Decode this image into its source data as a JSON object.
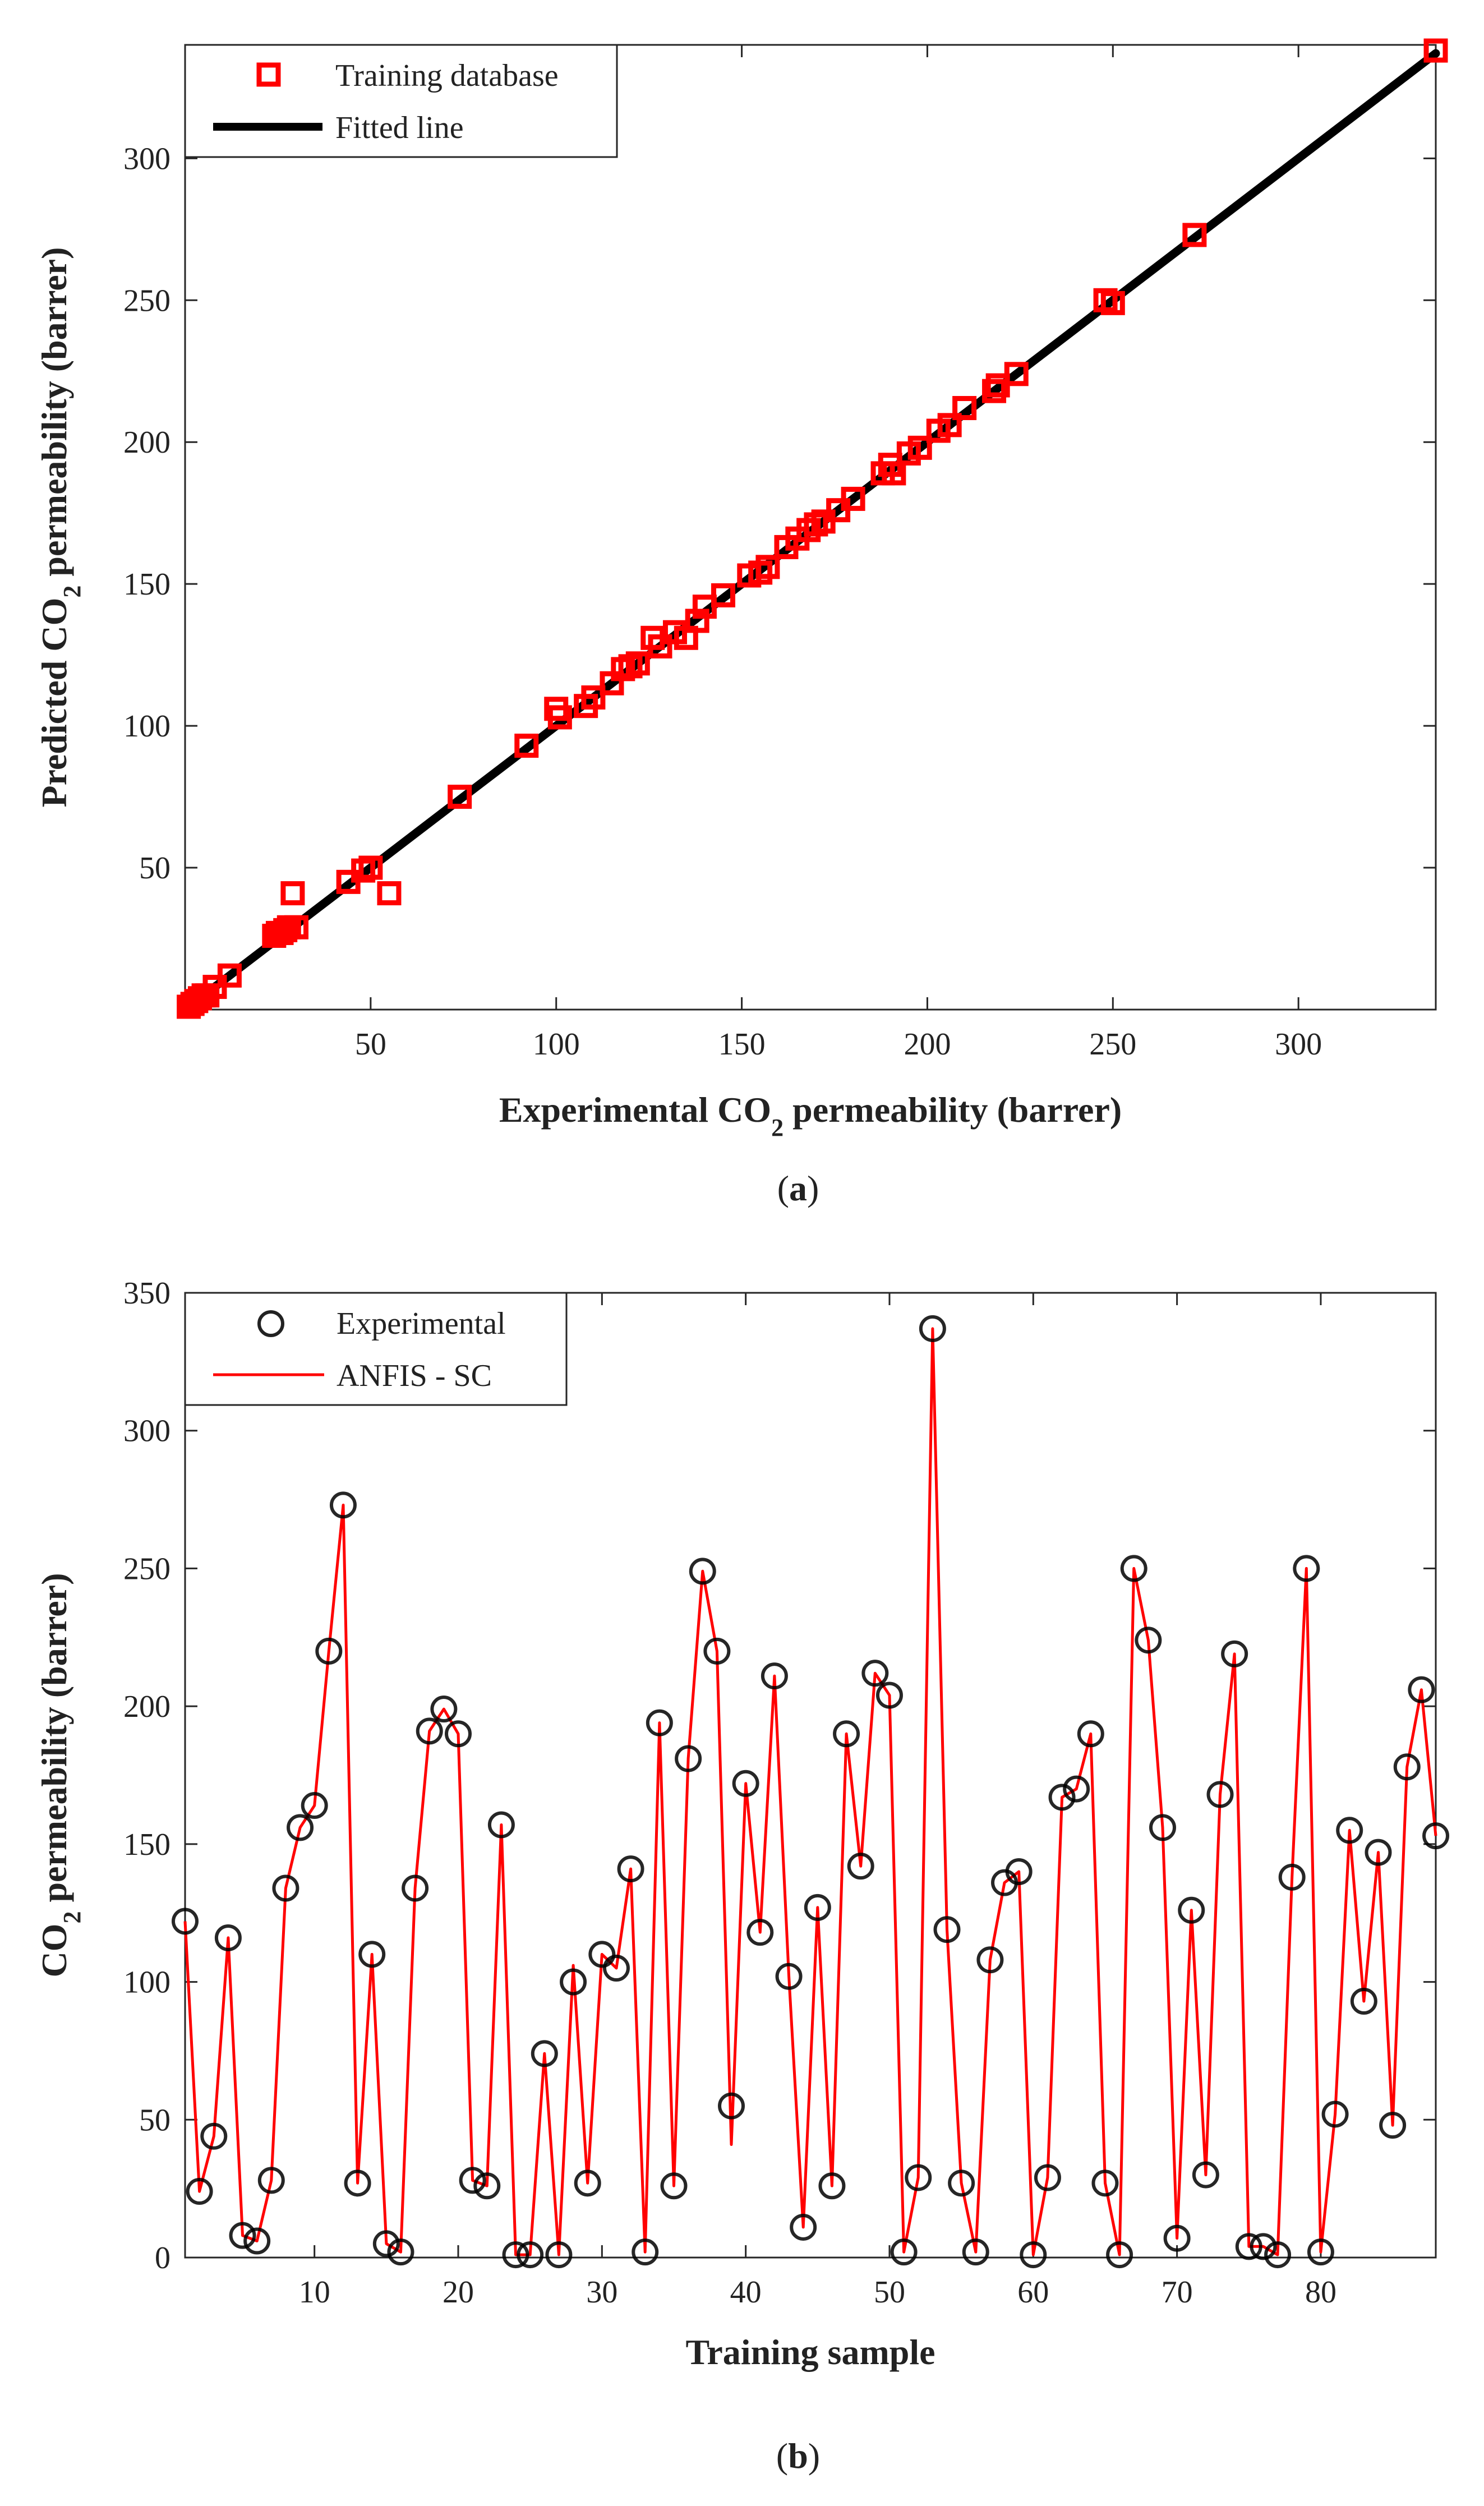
{
  "colors": {
    "marker": "#ff0000",
    "fit_line": "#000000",
    "model_line": "#ff0000",
    "circle": "#000000"
  },
  "chart_data": [
    {
      "type": "scatter",
      "panel_label": "a",
      "xlabel": {
        "pre": "Experimental CO",
        "sub": "2",
        "post": " permeability (barrer)"
      },
      "ylabel": {
        "pre": "Predicted CO",
        "sub": "2",
        "post": " permeability (barrer)"
      },
      "xlim": [
        0,
        337
      ],
      "ylim": [
        0,
        340
      ],
      "xticks": [
        50,
        100,
        150,
        200,
        250,
        300
      ],
      "yticks": [
        50,
        100,
        150,
        200,
        250,
        300
      ],
      "legend": {
        "position": "top-left",
        "entries": [
          {
            "label": "Training database",
            "kind": "square-marker"
          },
          {
            "label": "Fitted line",
            "kind": "thick-line"
          }
        ]
      },
      "series": [
        {
          "name": "Training database",
          "points": [
            [
              1,
              1
            ],
            [
              2,
              2
            ],
            [
              3,
              3
            ],
            [
              4,
              4
            ],
            [
              5,
              5
            ],
            [
              6,
              5
            ],
            [
              8,
              8
            ],
            [
              12,
              12
            ],
            [
              24,
              26
            ],
            [
              25,
              27
            ],
            [
              26,
              27
            ],
            [
              27,
              28
            ],
            [
              28,
              29
            ],
            [
              29,
              41
            ],
            [
              30,
              29
            ],
            [
              44,
              45
            ],
            [
              48,
              49
            ],
            [
              50,
              50
            ],
            [
              55,
              41
            ],
            [
              74,
              75
            ],
            [
              92,
              93
            ],
            [
              100,
              106
            ],
            [
              101,
              103
            ],
            [
              108,
              107
            ],
            [
              110,
              110
            ],
            [
              115,
              115
            ],
            [
              118,
              120
            ],
            [
              120,
              121
            ],
            [
              122,
              122
            ],
            [
              126,
              131
            ],
            [
              128,
              128
            ],
            [
              132,
              133
            ],
            [
              135,
              131
            ],
            [
              138,
              137
            ],
            [
              140,
              142
            ],
            [
              145,
              146
            ],
            [
              152,
              153
            ],
            [
              155,
              154
            ],
            [
              157,
              156
            ],
            [
              162,
              163
            ],
            [
              165,
              166
            ],
            [
              168,
              169
            ],
            [
              170,
              171
            ],
            [
              172,
              172
            ],
            [
              176,
              176
            ],
            [
              180,
              180
            ],
            [
              188,
              189
            ],
            [
              190,
              192
            ],
            [
              191,
              189
            ],
            [
              195,
              196
            ],
            [
              198,
              198
            ],
            [
              203,
              204
            ],
            [
              206,
              206
            ],
            [
              210,
              212
            ],
            [
              218,
              218
            ],
            [
              219,
              220
            ],
            [
              224,
              224
            ],
            [
              248,
              250
            ],
            [
              250,
              249
            ],
            [
              272,
              273
            ],
            [
              337,
              338
            ]
          ]
        },
        {
          "name": "Fitted line",
          "points": [
            [
              1,
              1
            ],
            [
              337,
              337
            ]
          ]
        }
      ]
    },
    {
      "type": "line",
      "panel_label": "b",
      "xlabel": {
        "pre": "Training sample",
        "sub": "",
        "post": ""
      },
      "ylabel": {
        "pre": "CO",
        "sub": "2",
        "post": " permeability (barrer)"
      },
      "xlim": [
        1,
        88
      ],
      "ylim": [
        0,
        350
      ],
      "xticks": [
        10,
        20,
        30,
        40,
        50,
        60,
        70,
        80
      ],
      "yticks": [
        0,
        50,
        100,
        150,
        200,
        250,
        300,
        350
      ],
      "legend": {
        "position": "top-left",
        "entries": [
          {
            "label": "Experimental",
            "kind": "circle-marker"
          },
          {
            "label": "ANFIS - SC",
            "kind": "thin-line"
          }
        ]
      },
      "series": [
        {
          "name": "Experimental",
          "values": [
            122,
            24,
            44,
            116,
            8,
            6,
            28,
            134,
            156,
            164,
            220,
            273,
            27,
            110,
            5,
            2,
            134,
            191,
            199,
            190,
            28,
            26,
            157,
            1,
            1,
            74,
            1,
            100,
            27,
            110,
            105,
            141,
            2,
            194,
            26,
            181,
            249,
            220,
            55,
            172,
            118,
            211,
            102,
            11,
            127,
            26,
            190,
            142,
            212,
            204,
            2,
            29,
            337,
            119,
            27,
            2,
            108,
            136,
            140,
            1,
            29,
            167,
            170,
            190,
            27,
            1,
            250,
            224,
            156,
            7,
            126,
            30,
            168,
            219,
            4,
            4,
            1,
            138,
            250,
            2,
            52,
            155,
            93,
            147,
            48,
            178,
            206,
            153
          ]
        },
        {
          "name": "ANFIS - SC",
          "values": [
            122,
            24,
            44,
            116,
            8,
            6,
            28,
            134,
            156,
            164,
            220,
            273,
            27,
            110,
            5,
            2,
            134,
            191,
            199,
            190,
            28,
            26,
            157,
            1,
            1,
            74,
            1,
            106,
            27,
            110,
            105,
            141,
            2,
            194,
            26,
            181,
            249,
            220,
            41,
            172,
            118,
            211,
            102,
            11,
            127,
            26,
            190,
            142,
            212,
            204,
            2,
            29,
            337,
            119,
            27,
            2,
            108,
            136,
            140,
            1,
            29,
            167,
            170,
            190,
            27,
            1,
            250,
            224,
            156,
            7,
            126,
            30,
            168,
            219,
            4,
            4,
            1,
            138,
            250,
            2,
            52,
            155,
            93,
            147,
            48,
            178,
            206,
            153
          ]
        }
      ]
    }
  ]
}
